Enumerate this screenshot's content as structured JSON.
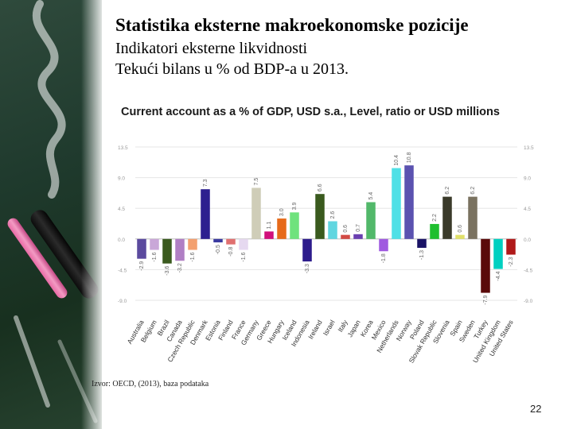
{
  "slide": {
    "title": "Statistika eksterne makroekonomske pozicije",
    "subtitle1": "Indikatori eksterne likvidnosti",
    "subtitle2": "Tekući bilans u % od BDP-a u 2013.",
    "source": "Izvor: OECD, (2013), baza podataka",
    "page_number": "22"
  },
  "chart_data": {
    "type": "bar",
    "title": "Current account as a % of GDP, USD s.a., Level, ratio or USD millions",
    "ylim": [
      -9.0,
      13.5
    ],
    "yticks": [
      "13.5",
      "9.0",
      "4.5",
      "0.0",
      "-4.5",
      "-9.0"
    ],
    "ytick_values": [
      13.5,
      9.0,
      4.5,
      0.0,
      -4.5,
      -9.0
    ],
    "grid": true,
    "categories": [
      "Australia",
      "Belgium",
      "Brazil",
      "Canada",
      "Czech Republic",
      "Denmark",
      "Estonia",
      "Finland",
      "France",
      "Germany",
      "Greece",
      "Hungary",
      "Iceland",
      "Indonesia",
      "Ireland",
      "Israel",
      "Italy",
      "Japan",
      "Korea",
      "Mexico",
      "Netherlands",
      "Norway",
      "Poland",
      "Slovak Republic",
      "Slovenia",
      "Spain",
      "Sweden",
      "Turkey",
      "United Kingdom",
      "United States"
    ],
    "values": [
      -2.9,
      -1.6,
      -3.6,
      -3.2,
      -1.6,
      7.3,
      -0.5,
      -0.8,
      -1.6,
      7.5,
      1.1,
      3.0,
      3.9,
      -3.3,
      6.6,
      2.6,
      0.6,
      0.7,
      5.4,
      -1.8,
      10.4,
      10.8,
      -1.3,
      2.2,
      6.2,
      0.6,
      6.2,
      -7.9,
      -4.4,
      -2.3
    ],
    "value_labels": [
      "-2.9",
      "-1.6",
      "-3.6",
      "-3.2",
      "-1.6",
      "7.3",
      "-0.5",
      "-0.8",
      "-1.6",
      "7.5",
      "1.1",
      "3.0",
      "3.9",
      "-3.3",
      "6.6",
      "2.6",
      "0.6",
      "0.7",
      "5.4",
      "-1.8",
      "10.4",
      "10.8",
      "-1.3",
      "2.2",
      "6.2",
      "0.6",
      "6.2",
      "-7.9",
      "-4.4",
      "-2.3"
    ],
    "colors": [
      "#5b4a9e",
      "#c9a7d8",
      "#3a5a1e",
      "#b07fc4",
      "#f3a070",
      "#2d1f8f",
      "#3a3aa0",
      "#e07070",
      "#e6d9f0",
      "#cfcdb8",
      "#d10f7b",
      "#e66a1a",
      "#6fe27d",
      "#2d1c8c",
      "#3a5a1e",
      "#60d6e0",
      "#d24a44",
      "#6a3fb0",
      "#52b86a",
      "#a05ae0",
      "#4fe0e6",
      "#5b52b0",
      "#1a1366",
      "#1fbf2f",
      "#3a3a2a",
      "#e0e06a",
      "#7a7260",
      "#5a0a0a",
      "#00d0c0",
      "#b01a1a"
    ]
  }
}
